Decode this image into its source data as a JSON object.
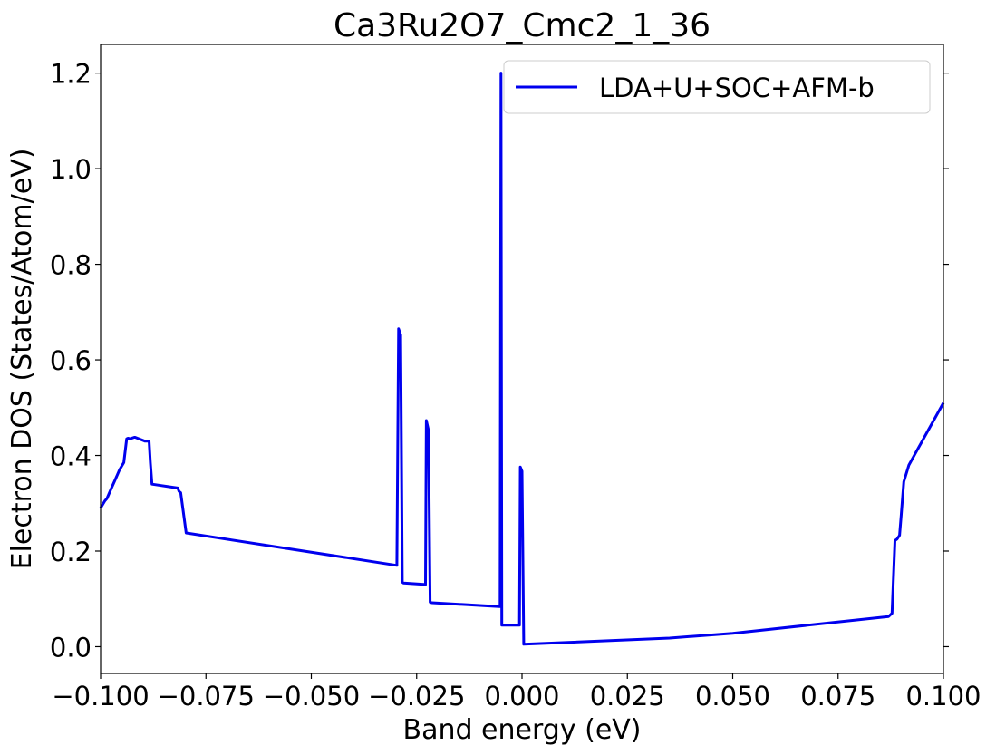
{
  "chart_data": {
    "type": "line",
    "title": "Ca3Ru2O7_Cmc2_1_36",
    "xlabel": "Band energy (eV)",
    "ylabel": "Electron DOS (States/Atom/eV)",
    "xlim": [
      -0.1,
      0.1
    ],
    "ylim": [
      -0.056,
      1.26
    ],
    "xticks": [
      -0.1,
      -0.075,
      -0.05,
      -0.025,
      0.0,
      0.025,
      0.05,
      0.075,
      0.1
    ],
    "xtick_labels": [
      "−0.100",
      "−0.075",
      "−0.050",
      "−0.025",
      "0.000",
      "0.025",
      "0.050",
      "0.075",
      "0.100"
    ],
    "yticks": [
      0.0,
      0.2,
      0.4,
      0.6,
      0.8,
      1.0,
      1.2
    ],
    "ytick_labels": [
      "0.0",
      "0.2",
      "0.4",
      "0.6",
      "0.8",
      "1.0",
      "1.2"
    ],
    "grid": false,
    "legend_position": "top-right",
    "series": [
      {
        "name": "LDA+U+SOC+AFM-b",
        "color": "#0000ee",
        "x": [
          -0.1,
          -0.099,
          -0.0985,
          -0.0975,
          -0.0965,
          -0.0955,
          -0.0945,
          -0.0938,
          -0.0935,
          -0.093,
          -0.092,
          -0.0918,
          -0.0895,
          -0.0885,
          -0.0882,
          -0.0878,
          -0.0825,
          -0.0817,
          -0.0814,
          -0.081,
          -0.0797,
          -0.0297,
          -0.0293,
          -0.0288,
          -0.0284,
          -0.0281,
          -0.0229,
          -0.0227,
          -0.0222,
          -0.0218,
          -0.0214,
          -0.0054,
          -0.0052,
          -0.005,
          -0.0048,
          -0.0046,
          -0.0006,
          -0.0004,
          0.0,
          0.0004,
          0.035,
          0.05,
          0.087,
          0.0878,
          0.0885,
          0.089,
          0.0896,
          0.09,
          0.0906,
          0.0918,
          0.1
        ],
        "y": [
          0.29,
          0.305,
          0.31,
          0.33,
          0.35,
          0.37,
          0.385,
          0.435,
          0.436,
          0.435,
          0.438,
          0.438,
          0.43,
          0.43,
          0.385,
          0.34,
          0.333,
          0.332,
          0.325,
          0.322,
          0.238,
          0.17,
          0.665,
          0.652,
          0.135,
          0.133,
          0.13,
          0.473,
          0.453,
          0.093,
          0.092,
          0.084,
          0.084,
          1.2,
          0.045,
          0.045,
          0.045,
          0.376,
          0.367,
          0.005,
          0.018,
          0.028,
          0.063,
          0.07,
          0.222,
          0.225,
          0.233,
          0.277,
          0.345,
          0.38,
          0.51
        ]
      }
    ]
  }
}
